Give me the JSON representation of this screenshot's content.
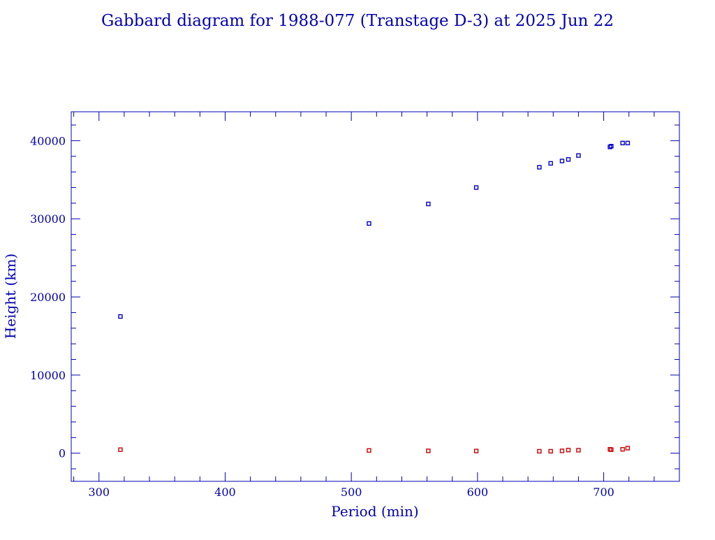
{
  "colors": {
    "axis": "#0000b0",
    "apogee": "#0000cc",
    "perigee": "#cc0000",
    "background": "#ffffff"
  },
  "chart_data": {
    "type": "scatter",
    "title": "Gabbard diagram for 1988-077 (Transtage D-3) at 2025 Jun 22",
    "xlabel": "Period (min)",
    "ylabel": "Height (km)",
    "xlim": [
      278,
      760
    ],
    "ylim": [
      -3600,
      43700
    ],
    "xticks": [
      300,
      400,
      500,
      600,
      700
    ],
    "yticks": [
      0,
      10000,
      20000,
      30000,
      40000
    ],
    "grid": false,
    "series": [
      {
        "key": "apogee",
        "color": "#0000cc",
        "points": [
          [
            317,
            17500
          ],
          [
            514,
            29400
          ],
          [
            561,
            31900
          ],
          [
            599,
            34000
          ],
          [
            649,
            36600
          ],
          [
            658,
            37100
          ],
          [
            667,
            37400
          ],
          [
            672,
            37600
          ],
          [
            680,
            38100
          ],
          [
            705,
            39200
          ],
          [
            706,
            39300
          ],
          [
            715,
            39700
          ],
          [
            719,
            39700
          ]
        ]
      },
      {
        "key": "perigee",
        "color": "#cc0000",
        "points": [
          [
            317,
            450
          ],
          [
            514,
            350
          ],
          [
            561,
            300
          ],
          [
            599,
            280
          ],
          [
            649,
            250
          ],
          [
            658,
            250
          ],
          [
            667,
            300
          ],
          [
            672,
            400
          ],
          [
            680,
            380
          ],
          [
            705,
            500
          ],
          [
            706,
            450
          ],
          [
            715,
            500
          ],
          [
            719,
            650
          ]
        ]
      }
    ]
  }
}
